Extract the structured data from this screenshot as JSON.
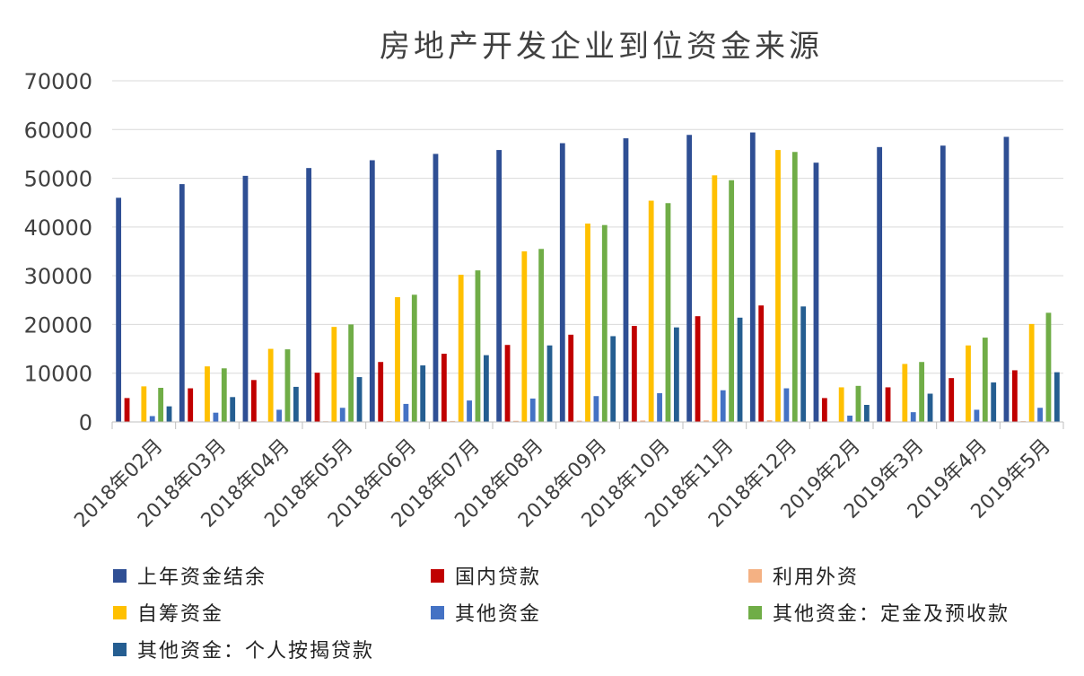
{
  "chart_data": {
    "type": "bar",
    "title": "房地产开发企业到位资金来源",
    "xlabel": "",
    "ylabel": "",
    "ylim": [
      0,
      70000
    ],
    "yticks": [
      0,
      10000,
      20000,
      30000,
      40000,
      50000,
      60000,
      70000
    ],
    "grid": true,
    "legend_position": "bottom",
    "categories": [
      "2018年02月",
      "2018年03月",
      "2018年04月",
      "2018年05月",
      "2018年06月",
      "2018年07月",
      "2018年08月",
      "2018年09月",
      "2018年10月",
      "2018年11月",
      "2018年12月",
      "2019年2月",
      "2019年3月",
      "2019年4月",
      "2019年5月"
    ],
    "series": [
      {
        "name": "上年资金结余",
        "color": "#2F4F94",
        "values": [
          46000,
          48800,
          50500,
          52100,
          53700,
          55000,
          55800,
          57200,
          58200,
          58900,
          59400,
          53200,
          56400,
          56700,
          58500
        ]
      },
      {
        "name": "国内贷款",
        "color": "#C00000",
        "values": [
          4900,
          6900,
          8600,
          10100,
          12300,
          14000,
          15800,
          17900,
          19700,
          21700,
          23900,
          4900,
          7100,
          9000,
          10600
        ]
      },
      {
        "name": "利用外资",
        "color": "#F4B183",
        "values": [
          50,
          80,
          110,
          140,
          170,
          200,
          230,
          260,
          290,
          320,
          350,
          50,
          90,
          130,
          170
        ]
      },
      {
        "name": "自筹资金",
        "color": "#FFC000",
        "values": [
          7300,
          11400,
          15000,
          19500,
          25600,
          30200,
          35000,
          40700,
          45400,
          50600,
          55800,
          7100,
          11900,
          15700,
          20100
        ]
      },
      {
        "name": "其他资金",
        "color": "#4472C4",
        "values": [
          1200,
          1900,
          2500,
          2900,
          3700,
          4400,
          4800,
          5300,
          5900,
          6500,
          6900,
          1300,
          2000,
          2500,
          2900
        ]
      },
      {
        "name": "其他资金：定金及预收款",
        "color": "#70AD47",
        "values": [
          7000,
          11000,
          14900,
          20000,
          26100,
          31100,
          35500,
          40400,
          44900,
          49600,
          55400,
          7400,
          12300,
          17300,
          22400
        ]
      },
      {
        "name": "其他资金：个人按揭贷款",
        "color": "#255E91",
        "values": [
          3200,
          5100,
          7200,
          9200,
          11600,
          13700,
          15700,
          17600,
          19400,
          21400,
          23700,
          3500,
          5800,
          8100,
          10200
        ]
      }
    ]
  }
}
